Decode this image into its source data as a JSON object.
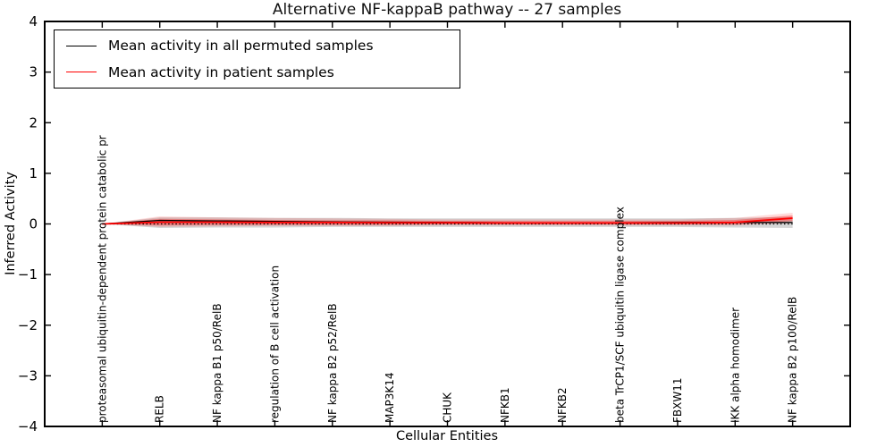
{
  "title": "Alternative NF-kappaB pathway -- 27 samples",
  "legend": {
    "items": [
      {
        "label": "Mean activity in all permuted samples",
        "color": "#000000"
      },
      {
        "label": "Mean activity in patient samples",
        "color": "#ff0000"
      }
    ]
  },
  "axes": {
    "y_label": "Inferred Activity",
    "x_label": "Cellular Entities",
    "y_tick_labels": [
      "4",
      "3",
      "2",
      "1",
      "0",
      "−1",
      "−2",
      "−3",
      "−4"
    ],
    "ylim": [
      -4,
      4
    ]
  },
  "chart_data": {
    "type": "line",
    "title": "Alternative NF-kappaB pathway -- 27 samples",
    "xlabel": "Cellular Entities",
    "ylabel": "Inferred Activity",
    "ylim": [
      -4,
      4
    ],
    "grid": false,
    "legend_position": "upper left",
    "zero_reference_line": {
      "y": 0,
      "style": "dotted",
      "color": "#000000"
    },
    "categories": [
      "proteasomal ubiquitin-dependent protein catabolic pr",
      "RELB",
      "NF kappa B1 p50/RelB",
      "regulation of B cell activation",
      "NF kappa B2 p52/RelB",
      "MAP3K14",
      "CHUK",
      "NFKB1",
      "NFKB2",
      "beta TrCP1/SCF ubiquitin ligase complex",
      "FBXW11",
      "IKK alpha homodimer",
      "NF kappa B2 p100/RelB"
    ],
    "series": [
      {
        "name": "Mean activity in all permuted samples",
        "color": "#000000",
        "line_width": 1.3,
        "values": [
          0,
          0.07,
          0.06,
          0.05,
          0.04,
          0.035,
          0.03,
          0.025,
          0.025,
          0.025,
          0.03,
          0.03,
          0.03
        ],
        "band_upper": [
          0,
          0.13,
          0.13,
          0.12,
          0.12,
          0.11,
          0.11,
          0.11,
          0.11,
          0.11,
          0.11,
          0.12,
          0.14
        ],
        "band_lower": [
          0,
          -0.08,
          -0.07,
          -0.07,
          -0.06,
          -0.06,
          -0.06,
          -0.06,
          -0.06,
          -0.06,
          -0.06,
          -0.07,
          -0.08
        ],
        "band_color": "rgba(0,0,0,0.16)"
      },
      {
        "name": "Mean activity in patient samples",
        "color": "#ff0000",
        "line_width": 1.8,
        "values": [
          0,
          0.035,
          0.035,
          0.03,
          0.03,
          0.025,
          0.025,
          0.02,
          0.02,
          0.02,
          0.02,
          0.03,
          0.115
        ],
        "band_upper": [
          0,
          0.1,
          0.09,
          0.08,
          0.07,
          0.07,
          0.06,
          0.06,
          0.06,
          0.06,
          0.06,
          0.08,
          0.17
        ],
        "band_lower": [
          0,
          -0.03,
          -0.02,
          -0.02,
          -0.02,
          -0.02,
          -0.01,
          -0.01,
          -0.01,
          -0.01,
          -0.01,
          -0.01,
          0.06
        ],
        "band_color": "rgba(255,0,0,0.30)",
        "band_outer_upper": [
          0,
          0.15,
          0.13,
          0.12,
          0.11,
          0.1,
          0.09,
          0.09,
          0.09,
          0.09,
          0.09,
          0.12,
          0.22
        ],
        "band_outer_lower": [
          0,
          -0.06,
          -0.05,
          -0.04,
          -0.04,
          -0.04,
          -0.03,
          -0.03,
          -0.03,
          -0.03,
          -0.03,
          -0.03,
          0.02
        ],
        "band_outer_color": "rgba(255,0,0,0.14)"
      }
    ]
  }
}
